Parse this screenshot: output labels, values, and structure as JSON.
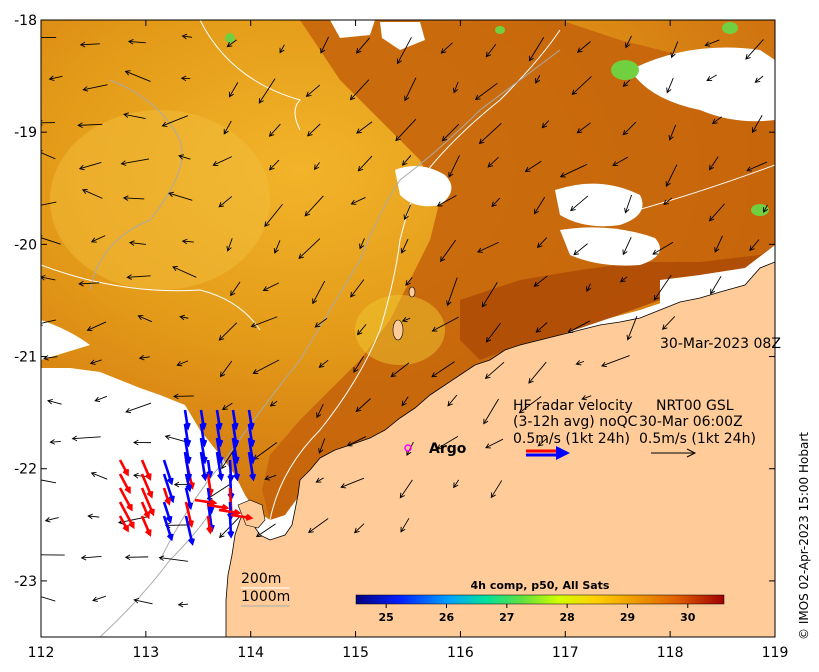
{
  "map": {
    "x_ticks": [
      "112",
      "113",
      "114",
      "115",
      "116",
      "117",
      "118",
      "119"
    ],
    "y_ticks": [
      "-18",
      "-19",
      "-20",
      "-21",
      "-22",
      "-23"
    ],
    "x_range": [
      112,
      119
    ],
    "y_range": [
      -23.5,
      -18
    ]
  },
  "timestamp": "30-Mar-2023 08Z",
  "hf_radar": {
    "line1": "HF radar velocity",
    "line2": "(3-12h avg) noQC",
    "line3": "0.5m/s (1kt 24h)",
    "colors": {
      "red": "#ff0000",
      "blue": "#0000ff"
    }
  },
  "nrt": {
    "line1": "NRT00 GSL",
    "line2": "30-Mar 06:00Z",
    "line3": "0.5m/s (1kt 24h)"
  },
  "argo": {
    "label": "Argo",
    "lon": 115.48,
    "lat": -21.78,
    "color": "#ff00ff"
  },
  "contours": {
    "label_200": "200m",
    "label_1000": "1000m"
  },
  "colorbar": {
    "title": "4h comp, p50, All Sats",
    "ticks": [
      "25",
      "26",
      "27",
      "28",
      "29",
      "30"
    ],
    "range": [
      24.5,
      30.6
    ]
  },
  "copyright": "© IMOS 02-Apr-2023 15:00 Hobart",
  "colors": {
    "land": "#ffcc99",
    "sst_warm": "#d0700a",
    "sst_hot": "#a84000",
    "cloud": "#ffffff"
  }
}
